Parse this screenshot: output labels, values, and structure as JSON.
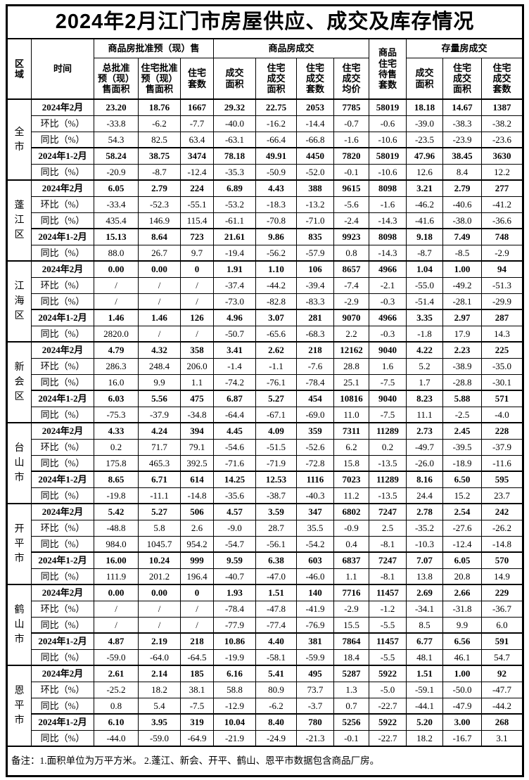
{
  "title": "2024年2月江门市房屋供应、成交及库存情况",
  "table": {
    "header": {
      "region_label": "区域",
      "time_label": "时间",
      "group_approved": "商品房批准预（现）售",
      "group_sales": "商品房成交",
      "pending_label": "商品\n住宅\n待售\n套数",
      "group_stock": "存量房成交",
      "subcols": [
        "总批准\n预（现）\n售面积",
        "住宅批准\n预（现）\n售面积",
        "住宅\n套数",
        "成交\n面积",
        "住宅\n成交\n面积",
        "住宅\n成交\n套数",
        "住宅\n成交\n均价",
        "成交\n面积",
        "住宅\n成交\n面积",
        "住宅\n成交\n套数"
      ]
    },
    "row_labels": [
      "2024年2月",
      "环比（%）",
      "同比（%）",
      "2024年1-2月",
      "同比（%）"
    ],
    "regions": [
      {
        "name": "全市",
        "rows": [
          {
            "label": "2024年2月",
            "values": [
              "23.20",
              "18.76",
              "1667",
              "29.32",
              "22.75",
              "2053",
              "7785",
              "58019",
              "18.18",
              "14.67",
              "1387"
            ]
          },
          {
            "label": "环比（%）",
            "values": [
              "-33.8",
              "-6.2",
              "-7.7",
              "-40.0",
              "-16.2",
              "-14.4",
              "-0.7",
              "-0.6",
              "-39.0",
              "-38.3",
              "-38.2"
            ]
          },
          {
            "label": "同比（%）",
            "values": [
              "54.3",
              "82.5",
              "63.4",
              "-63.1",
              "-66.4",
              "-66.8",
              "-1.6",
              "-10.6",
              "-23.5",
              "-23.9",
              "-23.6"
            ]
          },
          {
            "label": "2024年1-2月",
            "values": [
              "58.24",
              "38.75",
              "3474",
              "78.18",
              "49.91",
              "4450",
              "7820",
              "58019",
              "47.96",
              "38.45",
              "3630"
            ]
          },
          {
            "label": "同比（%）",
            "values": [
              "-20.9",
              "-8.7",
              "-12.4",
              "-35.3",
              "-50.9",
              "-52.0",
              "-0.1",
              "-10.6",
              "12.6",
              "8.4",
              "12.2"
            ]
          }
        ]
      },
      {
        "name": "蓬江区",
        "rows": [
          {
            "label": "2024年2月",
            "values": [
              "6.05",
              "2.79",
              "224",
              "6.89",
              "4.43",
              "388",
              "9615",
              "8098",
              "3.21",
              "2.79",
              "277"
            ]
          },
          {
            "label": "环比（%）",
            "values": [
              "-33.4",
              "-52.3",
              "-55.1",
              "-53.2",
              "-18.3",
              "-13.2",
              "-5.6",
              "-1.6",
              "-46.2",
              "-40.6",
              "-41.2"
            ]
          },
          {
            "label": "同比（%）",
            "values": [
              "435.4",
              "146.9",
              "115.4",
              "-61.1",
              "-70.8",
              "-71.0",
              "-2.4",
              "-14.3",
              "-41.6",
              "-38.0",
              "-36.6"
            ]
          },
          {
            "label": "2024年1-2月",
            "values": [
              "15.13",
              "8.64",
              "723",
              "21.61",
              "9.86",
              "835",
              "9923",
              "8098",
              "9.18",
              "7.49",
              "748"
            ]
          },
          {
            "label": "同比（%）",
            "values": [
              "88.0",
              "26.7",
              "9.7",
              "-19.4",
              "-56.2",
              "-57.9",
              "0.8",
              "-14.3",
              "-8.7",
              "-8.5",
              "-2.9"
            ]
          }
        ]
      },
      {
        "name": "江海区",
        "rows": [
          {
            "label": "2024年2月",
            "values": [
              "0.00",
              "0.00",
              "0",
              "1.91",
              "1.10",
              "106",
              "8657",
              "4966",
              "1.04",
              "1.00",
              "94"
            ]
          },
          {
            "label": "环比（%）",
            "values": [
              "/",
              "/",
              "/",
              "-37.4",
              "-44.2",
              "-39.4",
              "-7.4",
              "-2.1",
              "-55.0",
              "-49.2",
              "-51.3"
            ]
          },
          {
            "label": "同比（%）",
            "values": [
              "/",
              "/",
              "/",
              "-73.0",
              "-82.8",
              "-83.3",
              "-2.9",
              "-0.3",
              "-51.4",
              "-28.1",
              "-29.9"
            ]
          },
          {
            "label": "2024年1-2月",
            "values": [
              "1.46",
              "1.46",
              "126",
              "4.96",
              "3.07",
              "281",
              "9070",
              "4966",
              "3.35",
              "2.97",
              "287"
            ]
          },
          {
            "label": "同比（%）",
            "values": [
              "2820.0",
              "/",
              "/",
              "-50.7",
              "-65.6",
              "-68.3",
              "2.2",
              "-0.3",
              "-1.8",
              "17.9",
              "14.3"
            ]
          }
        ]
      },
      {
        "name": "新会区",
        "rows": [
          {
            "label": "2024年2月",
            "values": [
              "4.79",
              "4.32",
              "358",
              "3.41",
              "2.62",
              "218",
              "12162",
              "9040",
              "4.22",
              "2.23",
              "225"
            ]
          },
          {
            "label": "环比（%）",
            "values": [
              "286.3",
              "248.4",
              "206.0",
              "-1.4",
              "-1.1",
              "-7.6",
              "28.8",
              "1.6",
              "5.2",
              "-38.9",
              "-35.0"
            ]
          },
          {
            "label": "同比（%）",
            "values": [
              "16.0",
              "9.9",
              "1.1",
              "-74.2",
              "-76.1",
              "-78.4",
              "25.1",
              "-7.5",
              "1.7",
              "-28.8",
              "-30.1"
            ]
          },
          {
            "label": "2024年1-2月",
            "values": [
              "6.03",
              "5.56",
              "475",
              "6.87",
              "5.27",
              "454",
              "10816",
              "9040",
              "8.23",
              "5.88",
              "571"
            ]
          },
          {
            "label": "同比（%）",
            "values": [
              "-75.3",
              "-37.9",
              "-34.8",
              "-64.4",
              "-67.1",
              "-69.0",
              "11.0",
              "-7.5",
              "11.1",
              "-2.5",
              "-4.0"
            ]
          }
        ]
      },
      {
        "name": "台山市",
        "rows": [
          {
            "label": "2024年2月",
            "values": [
              "4.33",
              "4.24",
              "394",
              "4.45",
              "4.09",
              "359",
              "7311",
              "11289",
              "2.73",
              "2.45",
              "228"
            ]
          },
          {
            "label": "环比（%）",
            "values": [
              "0.2",
              "71.7",
              "79.1",
              "-54.6",
              "-51.5",
              "-52.6",
              "6.2",
              "0.2",
              "-49.7",
              "-39.5",
              "-37.9"
            ]
          },
          {
            "label": "同比（%）",
            "values": [
              "175.8",
              "465.3",
              "392.5",
              "-71.6",
              "-71.9",
              "-72.8",
              "15.8",
              "-13.5",
              "-26.0",
              "-18.9",
              "-11.6"
            ]
          },
          {
            "label": "2024年1-2月",
            "values": [
              "8.65",
              "6.71",
              "614",
              "14.25",
              "12.53",
              "1116",
              "7023",
              "11289",
              "8.16",
              "6.50",
              "595"
            ]
          },
          {
            "label": "同比（%）",
            "values": [
              "-19.8",
              "-11.1",
              "-14.8",
              "-35.6",
              "-38.7",
              "-40.3",
              "11.2",
              "-13.5",
              "24.4",
              "15.2",
              "23.7"
            ]
          }
        ]
      },
      {
        "name": "开平市",
        "rows": [
          {
            "label": "2024年2月",
            "values": [
              "5.42",
              "5.27",
              "506",
              "4.57",
              "3.59",
              "347",
              "6802",
              "7247",
              "2.78",
              "2.54",
              "242"
            ]
          },
          {
            "label": "环比（%）",
            "values": [
              "-48.8",
              "5.8",
              "2.6",
              "-9.0",
              "28.7",
              "35.5",
              "-0.9",
              "2.5",
              "-35.2",
              "-27.6",
              "-26.2"
            ]
          },
          {
            "label": "同比（%）",
            "values": [
              "984.0",
              "1045.7",
              "954.2",
              "-54.7",
              "-56.1",
              "-54.2",
              "0.4",
              "-8.1",
              "-10.3",
              "-12.4",
              "-14.8"
            ]
          },
          {
            "label": "2024年1-2月",
            "values": [
              "16.00",
              "10.24",
              "999",
              "9.59",
              "6.38",
              "603",
              "6837",
              "7247",
              "7.07",
              "6.05",
              "570"
            ]
          },
          {
            "label": "同比（%）",
            "values": [
              "111.9",
              "201.2",
              "196.4",
              "-40.7",
              "-47.0",
              "-46.0",
              "1.1",
              "-8.1",
              "13.8",
              "20.8",
              "14.9"
            ]
          }
        ]
      },
      {
        "name": "鹤山市",
        "rows": [
          {
            "label": "2024年2月",
            "values": [
              "0.00",
              "0.00",
              "0",
              "1.93",
              "1.51",
              "140",
              "7716",
              "11457",
              "2.69",
              "2.66",
              "229"
            ]
          },
          {
            "label": "环比（%）",
            "values": [
              "/",
              "/",
              "/",
              "-78.4",
              "-47.8",
              "-41.9",
              "-2.9",
              "-1.2",
              "-34.1",
              "-31.8",
              "-36.7"
            ]
          },
          {
            "label": "同比（%）",
            "values": [
              "/",
              "/",
              "/",
              "-77.9",
              "-77.4",
              "-76.9",
              "15.5",
              "-5.5",
              "8.5",
              "9.9",
              "6.0"
            ]
          },
          {
            "label": "2024年1-2月",
            "values": [
              "4.87",
              "2.19",
              "218",
              "10.86",
              "4.40",
              "381",
              "7864",
              "11457",
              "6.77",
              "6.56",
              "591"
            ]
          },
          {
            "label": "同比（%）",
            "values": [
              "-59.0",
              "-64.0",
              "-64.5",
              "-19.9",
              "-58.1",
              "-59.9",
              "18.4",
              "-5.5",
              "48.1",
              "46.1",
              "54.7"
            ]
          }
        ]
      },
      {
        "name": "恩平市",
        "rows": [
          {
            "label": "2024年2月",
            "values": [
              "2.61",
              "2.14",
              "185",
              "6.16",
              "5.41",
              "495",
              "5287",
              "5922",
              "1.51",
              "1.00",
              "92"
            ]
          },
          {
            "label": "环比（%）",
            "values": [
              "-25.2",
              "18.2",
              "38.1",
              "58.8",
              "80.9",
              "73.7",
              "1.3",
              "-5.0",
              "-59.1",
              "-50.0",
              "-47.7"
            ]
          },
          {
            "label": "同比（%）",
            "values": [
              "0.8",
              "5.4",
              "-7.5",
              "-12.9",
              "-6.2",
              "-3.7",
              "0.7",
              "-22.7",
              "-44.1",
              "-47.9",
              "-44.2"
            ]
          },
          {
            "label": "2024年1-2月",
            "values": [
              "6.10",
              "3.95",
              "319",
              "10.04",
              "8.40",
              "780",
              "5256",
              "5922",
              "5.20",
              "3.00",
              "268"
            ]
          },
          {
            "label": "同比（%）",
            "values": [
              "-44.0",
              "-59.0",
              "-64.9",
              "-21.9",
              "-24.9",
              "-21.3",
              "-0.1",
              "-22.7",
              "18.2",
              "-16.7",
              "3.1"
            ]
          }
        ]
      }
    ]
  },
  "footer": {
    "note": "备注：1.面积单位为万平方米。 2.蓬江、新会、开平、鹤山、恩平市数据包含商品厂房。"
  }
}
